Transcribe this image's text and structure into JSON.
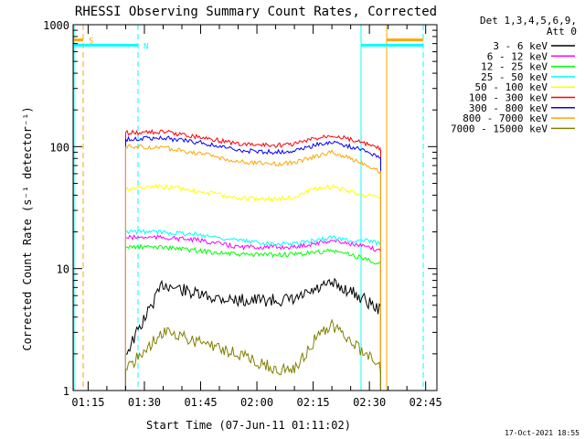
{
  "chart_data": {
    "type": "line",
    "title": "RHESSI Observing Summary Count Rates, Corrected",
    "xlabel": "Start Time (07-Jun-11 01:11:02)",
    "ylabel": "Corrected Count Rate (s⁻¹ detector⁻¹)",
    "ylog": true,
    "ylim": [
      1,
      1000
    ],
    "xlim": [
      "01:11",
      "02:48"
    ],
    "x_ticks": [
      "01:15",
      "01:30",
      "01:45",
      "02:00",
      "02:15",
      "02:30",
      "02:45"
    ],
    "y_ticks": [
      "1",
      "10",
      "100",
      "1000"
    ],
    "legend_title": [
      "Det 1,3,4,5,6,9,",
      "Att 0"
    ],
    "legend_position": "right",
    "series": [
      {
        "name": "3 - 6 keV",
        "color": "#000000",
        "x": [
          "01:25",
          "01:35",
          "01:45",
          "01:55",
          "02:05",
          "02:10",
          "02:15",
          "02:20",
          "02:25",
          "02:29",
          "02:33"
        ],
        "y": [
          2,
          7.5,
          6,
          5.5,
          5.5,
          5.5,
          6.5,
          7.5,
          6.5,
          5.5,
          4.5
        ]
      },
      {
        "name": "6 - 12 keV",
        "color": "#ff00ff",
        "x": [
          "01:25",
          "01:35",
          "01:45",
          "01:55",
          "02:05",
          "02:10",
          "02:15",
          "02:20",
          "02:25",
          "02:29",
          "02:33"
        ],
        "y": [
          18,
          18,
          17,
          15,
          15,
          15,
          16,
          17,
          16,
          15,
          14
        ]
      },
      {
        "name": "12 - 25 keV",
        "color": "#00ff00",
        "x": [
          "01:25",
          "01:35",
          "01:45",
          "01:55",
          "02:05",
          "02:10",
          "02:15",
          "02:20",
          "02:25",
          "02:29",
          "02:33"
        ],
        "y": [
          15,
          15,
          14,
          13,
          13,
          13,
          13.5,
          14,
          13,
          12,
          11
        ]
      },
      {
        "name": "25 - 50 keV",
        "color": "#00ffff",
        "x": [
          "01:25",
          "01:35",
          "01:45",
          "01:55",
          "02:05",
          "02:10",
          "02:15",
          "02:20",
          "02:25",
          "02:29",
          "02:33"
        ],
        "y": [
          20,
          20,
          19,
          17,
          16,
          16,
          17,
          18,
          17,
          17,
          16
        ]
      },
      {
        "name": "50 - 100 keV",
        "color": "#ffff00",
        "x": [
          "01:25",
          "01:35",
          "01:45",
          "01:55",
          "02:05",
          "02:10",
          "02:15",
          "02:20",
          "02:25",
          "02:29",
          "02:33"
        ],
        "y": [
          45,
          47,
          43,
          38,
          37,
          39,
          44,
          47,
          43,
          40,
          38
        ]
      },
      {
        "name": "100 - 300 keV",
        "color": "#ff0000",
        "x": [
          "01:25",
          "01:35",
          "01:45",
          "01:55",
          "02:05",
          "02:10",
          "02:15",
          "02:20",
          "02:25",
          "02:29",
          "02:33"
        ],
        "y": [
          130,
          132,
          120,
          105,
          102,
          105,
          115,
          125,
          115,
          105,
          95
        ]
      },
      {
        "name": "300 - 800 keV",
        "color": "#0000ff",
        "x": [
          "01:25",
          "01:35",
          "01:45",
          "01:55",
          "02:05",
          "02:10",
          "02:15",
          "02:20",
          "02:25",
          "02:29",
          "02:33"
        ],
        "y": [
          115,
          118,
          108,
          93,
          90,
          93,
          102,
          110,
          100,
          92,
          82
        ]
      },
      {
        "name": "800 - 7000 keV",
        "color": "#ffa500",
        "x": [
          "01:25",
          "01:35",
          "01:45",
          "01:55",
          "02:05",
          "02:10",
          "02:15",
          "02:20",
          "02:25",
          "02:29",
          "02:33"
        ],
        "y": [
          100,
          98,
          88,
          75,
          72,
          74,
          82,
          90,
          80,
          72,
          62
        ]
      },
      {
        "name": "7000 - 15000 keV",
        "color": "#808000",
        "x": [
          "01:25",
          "01:35",
          "01:45",
          "01:55",
          "02:05",
          "02:10",
          "02:15",
          "02:20",
          "02:25",
          "02:29",
          "02:33"
        ],
        "y": [
          1.5,
          3,
          2.5,
          2,
          1.5,
          1.5,
          2.5,
          3.5,
          2.5,
          2,
          1.5
        ]
      }
    ],
    "flags": [
      {
        "label": "S",
        "color": "#ffa500",
        "y": 750
      },
      {
        "label": "N",
        "color": "#00ffff",
        "y": 680
      }
    ]
  },
  "timestamp": "17-Oct-2021 18:55"
}
